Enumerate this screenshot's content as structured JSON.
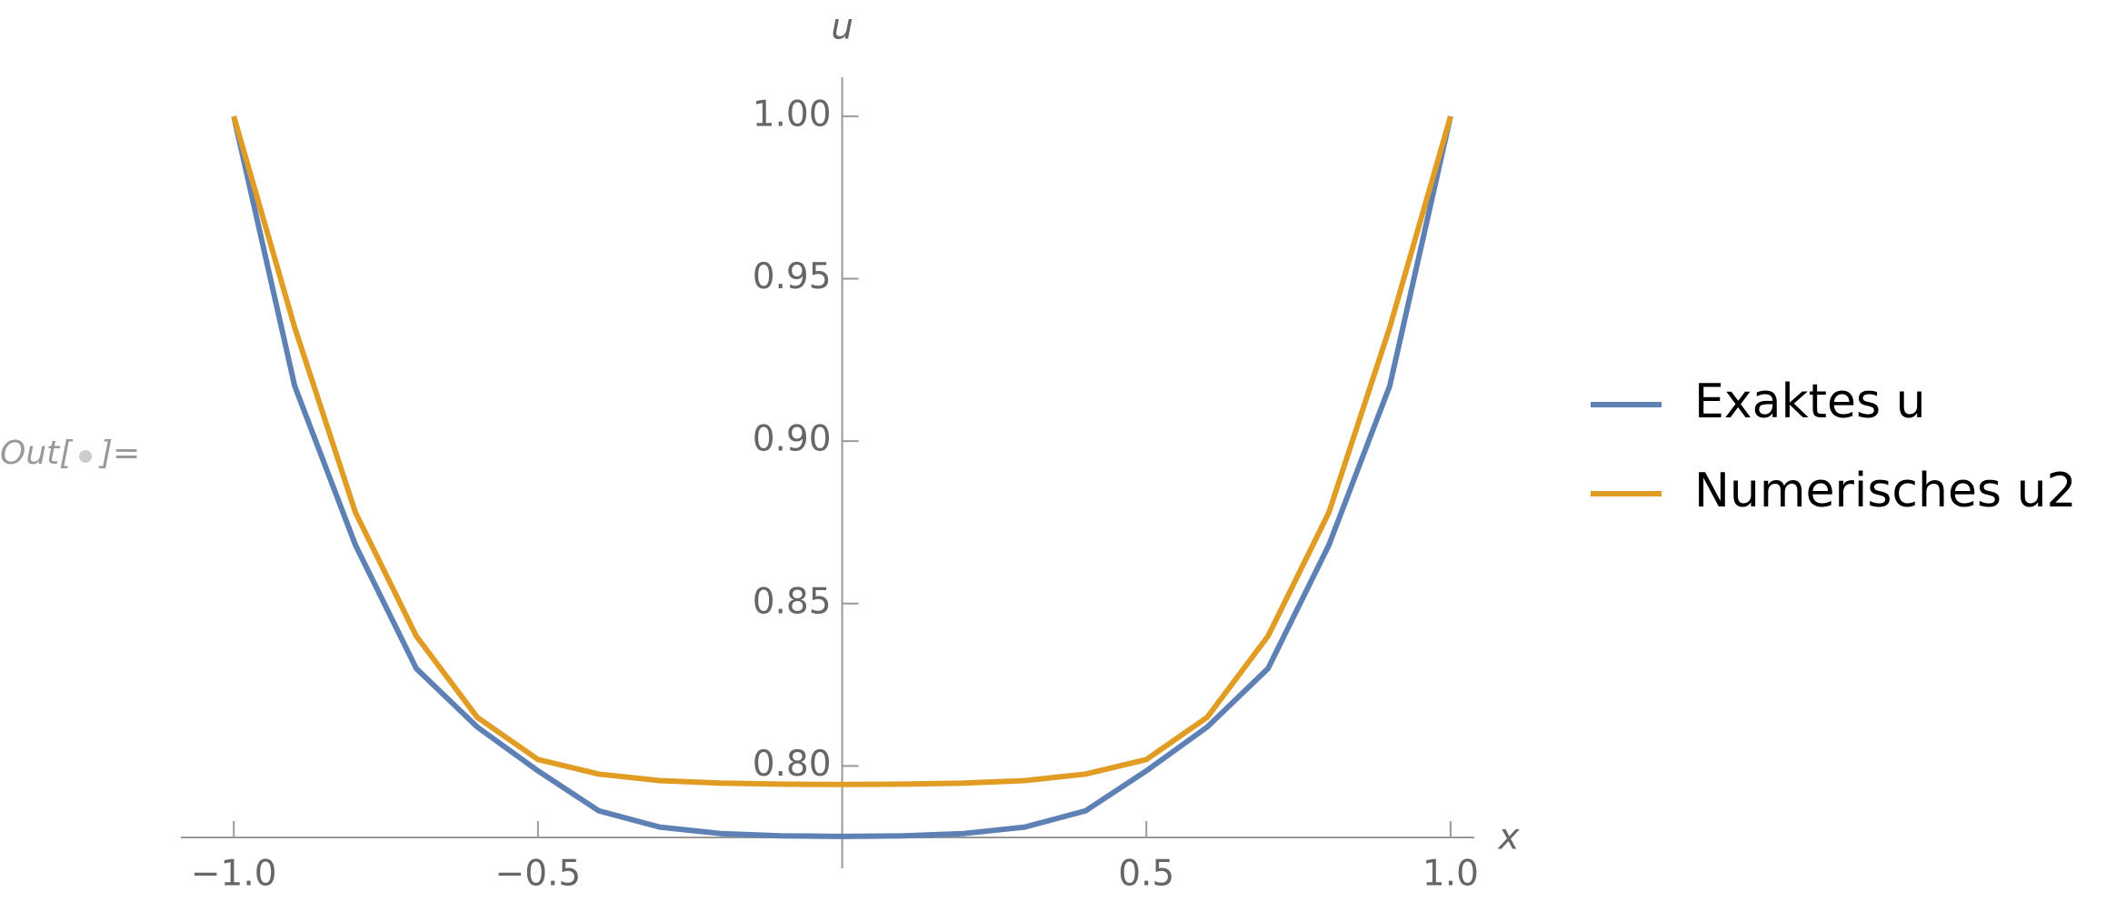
{
  "cell_label": [
    "Out[",
    "]="
  ],
  "chart_data": {
    "type": "line",
    "x_label": "x",
    "y_label": "u",
    "x": [
      -1.0,
      -0.9,
      -0.8,
      -0.7,
      -0.6,
      -0.5,
      -0.4,
      -0.3,
      -0.2,
      -0.1,
      0.0,
      0.1,
      0.2,
      0.3,
      0.4,
      0.5,
      0.6,
      0.7,
      0.8,
      0.9,
      1.0
    ],
    "series": [
      {
        "name": "Exaktes u",
        "color": "#5e81b5",
        "values": [
          1.0,
          0.917,
          0.868,
          0.83,
          0.812,
          0.7985,
          0.7862,
          0.7812,
          0.7792,
          0.7785,
          0.7783,
          0.7785,
          0.7792,
          0.7812,
          0.7862,
          0.7985,
          0.812,
          0.83,
          0.868,
          0.917,
          1.0
        ]
      },
      {
        "name": "Numerisches u2",
        "color": "#e19c24",
        "values": [
          1.0,
          0.935,
          0.878,
          0.84,
          0.815,
          0.802,
          0.7975,
          0.7955,
          0.7947,
          0.7944,
          0.7943,
          0.7944,
          0.7947,
          0.7955,
          0.7975,
          0.802,
          0.815,
          0.84,
          0.878,
          0.935,
          1.0
        ]
      }
    ],
    "xlim": [
      -1.087,
      1.039
    ],
    "ylim": [
      0.778,
      1.012
    ],
    "xticks": [
      {
        "value": -1.0,
        "label": "−1.0"
      },
      {
        "value": -0.5,
        "label": "−0.5"
      },
      0.5,
      {
        "value": 1.0,
        "label": "1.0"
      }
    ],
    "yticks": [
      {
        "value": 0.8,
        "label": "0.80"
      },
      {
        "value": 0.85,
        "label": "0.85"
      },
      {
        "value": 0.9,
        "label": "0.90"
      },
      {
        "value": 0.95,
        "label": "0.95"
      },
      {
        "value": 1.0,
        "label": "1.00"
      }
    ],
    "legend": "right"
  }
}
